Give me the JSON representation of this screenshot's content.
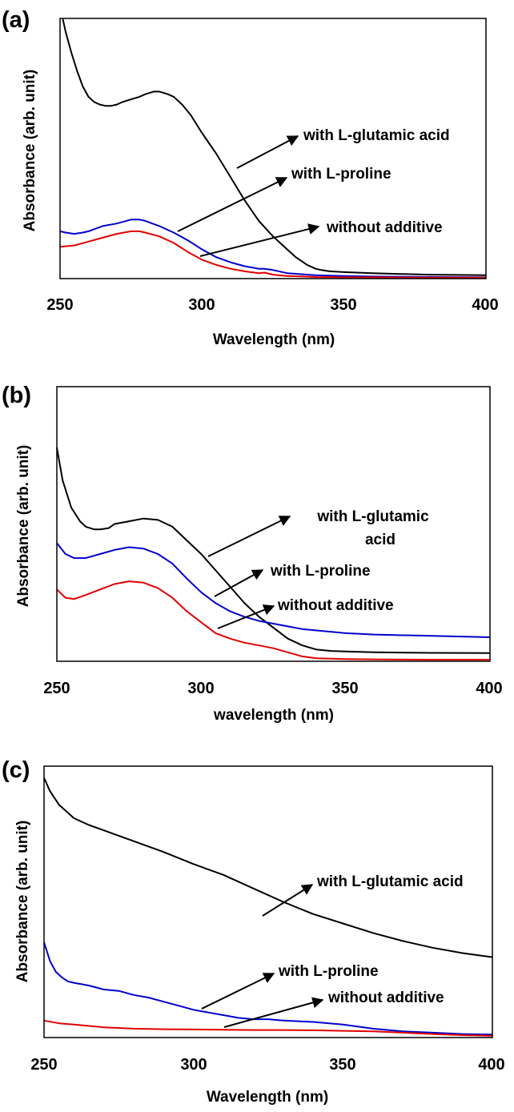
{
  "colors": {
    "black": "#000000",
    "blue": "#0000cc",
    "red": "#e00000"
  },
  "chart_data": [
    {
      "panel": "(a)",
      "type": "line",
      "xlabel": "Wavelength (nm)",
      "ylabel": "Absorbance (arb. unit)",
      "xlim": [
        250,
        400
      ],
      "ylim": [
        0,
        1
      ],
      "xticks": [
        "250",
        "300",
        "350",
        "400"
      ],
      "series": [
        {
          "color": "#000000",
          "x": [
            251,
            252,
            254,
            256,
            258,
            260,
            262,
            264,
            266,
            268,
            270,
            272,
            275,
            278,
            280,
            283,
            285,
            288,
            290,
            293,
            296,
            300,
            305,
            310,
            315,
            320,
            325,
            330,
            333,
            337,
            340,
            342,
            345,
            350,
            360,
            370,
            380,
            390,
            400
          ],
          "y": [
            1.0,
            0.95,
            0.87,
            0.8,
            0.74,
            0.7,
            0.68,
            0.67,
            0.665,
            0.665,
            0.67,
            0.68,
            0.69,
            0.7,
            0.71,
            0.72,
            0.72,
            0.71,
            0.7,
            0.67,
            0.63,
            0.56,
            0.48,
            0.39,
            0.3,
            0.22,
            0.16,
            0.11,
            0.08,
            0.05,
            0.035,
            0.03,
            0.025,
            0.022,
            0.018,
            0.015,
            0.012,
            0.011,
            0.01
          ]
        },
        {
          "color": "#0000cc",
          "x": [
            250,
            252,
            255,
            258,
            260,
            265,
            270,
            275,
            278,
            280,
            285,
            290,
            295,
            300,
            305,
            310,
            315,
            320,
            322,
            325,
            330,
            340,
            350,
            360,
            380,
            400
          ],
          "y": [
            0.18,
            0.175,
            0.17,
            0.175,
            0.18,
            0.2,
            0.21,
            0.225,
            0.225,
            0.22,
            0.2,
            0.175,
            0.145,
            0.11,
            0.08,
            0.06,
            0.045,
            0.035,
            0.035,
            0.03,
            0.018,
            0.01,
            0.007,
            0.005,
            0.003,
            0.002
          ]
        },
        {
          "color": "#e00000",
          "x": [
            250,
            255,
            260,
            265,
            270,
            275,
            278,
            280,
            285,
            290,
            295,
            300,
            305,
            310,
            315,
            320,
            322,
            325,
            330,
            340,
            350,
            360,
            380,
            400
          ],
          "y": [
            0.12,
            0.125,
            0.14,
            0.155,
            0.17,
            0.18,
            0.18,
            0.175,
            0.16,
            0.135,
            0.1,
            0.07,
            0.05,
            0.035,
            0.025,
            0.018,
            0.02,
            0.012,
            0.007,
            0.003,
            0.002,
            0.002,
            0.001,
            0.001
          ]
        }
      ],
      "annotations": [
        "with L-glutamic acid",
        "with L-proline",
        "without additive"
      ]
    },
    {
      "panel": "(b)",
      "type": "line",
      "xlabel": "wavelength (nm)",
      "ylabel": "Absorbance (arb. unit)",
      "xlim": [
        250,
        400
      ],
      "ylim": [
        0,
        1
      ],
      "xticks": [
        "250",
        "300",
        "350",
        "400"
      ],
      "series": [
        {
          "color": "#000000",
          "x": [
            250,
            252,
            255,
            258,
            260,
            263,
            265,
            268,
            270,
            275,
            280,
            285,
            290,
            295,
            300,
            305,
            310,
            315,
            320,
            325,
            330,
            335,
            340,
            345,
            350,
            360,
            380,
            400
          ],
          "y": [
            0.78,
            0.66,
            0.56,
            0.51,
            0.49,
            0.48,
            0.48,
            0.485,
            0.5,
            0.51,
            0.52,
            0.515,
            0.49,
            0.44,
            0.39,
            0.33,
            0.27,
            0.21,
            0.16,
            0.12,
            0.08,
            0.055,
            0.04,
            0.035,
            0.033,
            0.03,
            0.028,
            0.027
          ]
        },
        {
          "color": "#0000cc",
          "x": [
            250,
            253,
            256,
            260,
            265,
            270,
            275,
            280,
            285,
            290,
            295,
            300,
            305,
            310,
            315,
            320,
            325,
            330,
            335,
            340,
            350,
            360,
            380,
            400
          ],
          "y": [
            0.43,
            0.39,
            0.375,
            0.375,
            0.39,
            0.405,
            0.415,
            0.41,
            0.39,
            0.355,
            0.3,
            0.25,
            0.21,
            0.18,
            0.16,
            0.145,
            0.135,
            0.125,
            0.115,
            0.11,
            0.1,
            0.095,
            0.09,
            0.085
          ]
        },
        {
          "color": "#e00000",
          "x": [
            250,
            253,
            256,
            260,
            265,
            270,
            275,
            280,
            285,
            290,
            295,
            300,
            305,
            310,
            315,
            320,
            325,
            330,
            335,
            340,
            350,
            360,
            380,
            400
          ],
          "y": [
            0.26,
            0.23,
            0.225,
            0.24,
            0.26,
            0.28,
            0.29,
            0.285,
            0.265,
            0.23,
            0.18,
            0.14,
            0.1,
            0.08,
            0.065,
            0.055,
            0.045,
            0.03,
            0.015,
            0.008,
            0.005,
            0.004,
            0.003,
            0.003
          ]
        }
      ],
      "annotations": [
        "with L-glutamic",
        "acid",
        "with L-proline",
        "without additive"
      ]
    },
    {
      "panel": "(c)",
      "type": "line",
      "xlabel": "Wavelength (nm)",
      "ylabel": "Absorbance (arb. unit)",
      "xlim": [
        250,
        400
      ],
      "ylim": [
        0,
        1
      ],
      "xticks": [
        "250",
        "300",
        "350",
        "400"
      ],
      "series": [
        {
          "color": "#000000",
          "x": [
            250,
            252,
            255,
            258,
            260,
            265,
            270,
            275,
            280,
            290,
            300,
            310,
            320,
            330,
            340,
            350,
            360,
            370,
            380,
            390,
            400
          ],
          "y": [
            0.96,
            0.91,
            0.86,
            0.83,
            0.81,
            0.785,
            0.765,
            0.745,
            0.725,
            0.685,
            0.64,
            0.6,
            0.55,
            0.5,
            0.455,
            0.42,
            0.385,
            0.355,
            0.33,
            0.31,
            0.295
          ]
        },
        {
          "color": "#0000cc",
          "x": [
            250,
            252,
            254,
            256,
            258,
            260,
            265,
            270,
            275,
            280,
            285,
            290,
            295,
            300,
            305,
            310,
            315,
            320,
            325,
            330,
            340,
            350,
            360,
            370,
            380,
            390,
            400
          ],
          "y": [
            0.35,
            0.28,
            0.24,
            0.22,
            0.205,
            0.2,
            0.19,
            0.175,
            0.17,
            0.155,
            0.145,
            0.13,
            0.115,
            0.1,
            0.09,
            0.08,
            0.07,
            0.065,
            0.065,
            0.06,
            0.055,
            0.045,
            0.03,
            0.02,
            0.015,
            0.01,
            0.008
          ]
        },
        {
          "color": "#e00000",
          "x": [
            250,
            255,
            260,
            265,
            270,
            280,
            290,
            300,
            310,
            320,
            330,
            340,
            350,
            360,
            370,
            380,
            390,
            400
          ],
          "y": [
            0.06,
            0.05,
            0.045,
            0.04,
            0.035,
            0.03,
            0.028,
            0.027,
            0.026,
            0.025,
            0.025,
            0.024,
            0.022,
            0.02,
            0.015,
            0.01,
            0.006,
            0.004
          ]
        }
      ],
      "annotations": [
        "with L-glutamic acid",
        "with L-proline",
        "without additive"
      ]
    }
  ]
}
